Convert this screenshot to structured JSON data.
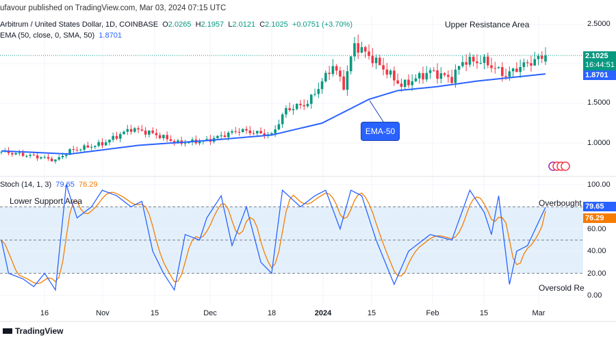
{
  "header": {
    "published": "ufavour published on TradingView.com, Mar 03, 2024 07:15 UTC"
  },
  "legend": {
    "symbol": "Arbitrum / United States Dollar, 1D, COINBASE",
    "o_label": "O",
    "o": "2.0265",
    "h_label": "H",
    "h": "2.1957",
    "l_label": "L",
    "l": "2.0121",
    "c_label": "C",
    "c": "2.1025",
    "change": "+0.0751 (+3.70%)",
    "ema_label": "EMA (50, close, 0, SMA, 50)",
    "ema_value": "1.8701"
  },
  "stoch_legend": {
    "label": "Stoch (14, 1, 3)",
    "k": "79.65",
    "d": "76.29"
  },
  "price_labels": {
    "last": "2.1025",
    "countdown": "16:44:51",
    "ema": "1.8701"
  },
  "stoch_labels": {
    "k": "79.65",
    "d": "76.29"
  },
  "annotations": {
    "upper": "Upper Resistance Area",
    "ema": "EMA-50",
    "lower": "Lower Support Area",
    "overbought": "Overbought",
    "oversold": "Oversold Re"
  },
  "footer": {
    "logo": "TradingView"
  },
  "colors": {
    "up": "#089981",
    "down": "#f23645",
    "ema": "#2962ff",
    "k": "#2962ff",
    "d": "#f57c00",
    "band": "#e3f0fb"
  },
  "chart_data": [
    {
      "type": "candlestick",
      "yaxis_ticks": [
        "2.5000",
        "1.5000",
        "1.0000"
      ],
      "ylim": [
        0.7,
        2.6
      ],
      "xaxis_ticks": [
        "16",
        "Nov",
        "15",
        "Dec",
        "18",
        "2024",
        "15",
        "Feb",
        "15",
        "Mar"
      ],
      "close": [
        [
          "2023-10-04",
          0.89
        ],
        [
          "2023-10-15",
          0.82
        ],
        [
          "2023-10-19",
          0.78
        ],
        [
          "2023-10-23",
          0.9
        ],
        [
          "2023-11-01",
          0.99
        ],
        [
          "2023-11-09",
          1.18
        ],
        [
          "2023-11-15",
          1.12
        ],
        [
          "2023-11-22",
          1.0
        ],
        [
          "2023-11-30",
          1.03
        ],
        [
          "2023-12-09",
          1.16
        ],
        [
          "2023-12-18",
          1.1
        ],
        [
          "2023-12-22",
          1.42
        ],
        [
          "2023-12-28",
          1.5
        ],
        [
          "2024-01-01",
          1.77
        ],
        [
          "2024-01-04",
          1.98
        ],
        [
          "2024-01-07",
          1.72
        ],
        [
          "2024-01-10",
          2.24
        ],
        [
          "2024-01-14",
          2.1
        ],
        [
          "2024-01-18",
          1.94
        ],
        [
          "2024-01-23",
          1.72
        ],
        [
          "2024-01-31",
          1.9
        ],
        [
          "2024-02-06",
          1.81
        ],
        [
          "2024-02-09",
          2.03
        ],
        [
          "2024-02-15",
          2.03
        ],
        [
          "2024-02-21",
          1.85
        ],
        [
          "2024-02-24",
          1.94
        ],
        [
          "2024-03-03",
          2.1025
        ]
      ],
      "ema50": [
        [
          "2023-10-04",
          0.9
        ],
        [
          "2023-10-23",
          0.86
        ],
        [
          "2023-11-11",
          0.97
        ],
        [
          "2023-11-30",
          1.03
        ],
        [
          "2023-12-18",
          1.1
        ],
        [
          "2024-01-01",
          1.25
        ],
        [
          "2024-01-14",
          1.55
        ],
        [
          "2024-01-22",
          1.66
        ],
        [
          "2024-02-02",
          1.71
        ],
        [
          "2024-02-13",
          1.78
        ],
        [
          "2024-03-03",
          1.8701
        ]
      ]
    },
    {
      "type": "line",
      "title": "Stoch (14, 1, 3)",
      "yaxis_ticks": [
        "100.00",
        "80.00",
        "60.00",
        "40.00",
        "20.00",
        "0.00"
      ],
      "ylim": [
        0,
        100
      ],
      "bands": [
        20,
        50,
        80
      ],
      "k": [
        [
          "2023-10-04",
          50
        ],
        [
          "2023-10-06",
          20
        ],
        [
          "2023-10-10",
          15
        ],
        [
          "2023-10-13",
          8
        ],
        [
          "2023-10-16",
          20
        ],
        [
          "2023-10-19",
          5
        ],
        [
          "2023-10-22",
          100
        ],
        [
          "2023-10-25",
          70
        ],
        [
          "2023-10-29",
          80
        ],
        [
          "2023-11-01",
          95
        ],
        [
          "2023-11-05",
          90
        ],
        [
          "2023-11-09",
          80
        ],
        [
          "2023-11-12",
          85
        ],
        [
          "2023-11-15",
          40
        ],
        [
          "2023-11-18",
          20
        ],
        [
          "2023-11-21",
          5
        ],
        [
          "2023-11-24",
          55
        ],
        [
          "2023-11-28",
          50
        ],
        [
          "2023-11-30",
          70
        ],
        [
          "2023-12-04",
          90
        ],
        [
          "2023-12-07",
          45
        ],
        [
          "2023-12-11",
          80
        ],
        [
          "2023-12-15",
          30
        ],
        [
          "2023-12-18",
          20
        ],
        [
          "2023-12-21",
          95
        ],
        [
          "2023-12-26",
          80
        ],
        [
          "2023-12-30",
          90
        ],
        [
          "2024-01-02",
          95
        ],
        [
          "2024-01-06",
          60
        ],
        [
          "2024-01-09",
          95
        ],
        [
          "2024-01-12",
          90
        ],
        [
          "2024-01-16",
          50
        ],
        [
          "2024-01-21",
          10
        ],
        [
          "2024-01-25",
          40
        ],
        [
          "2024-01-31",
          55
        ],
        [
          "2024-02-06",
          50
        ],
        [
          "2024-02-11",
          95
        ],
        [
          "2024-02-15",
          75
        ],
        [
          "2024-02-17",
          55
        ],
        [
          "2024-02-19",
          90
        ],
        [
          "2024-02-22",
          10
        ],
        [
          "2024-02-24",
          40
        ],
        [
          "2024-02-27",
          45
        ],
        [
          "2024-03-03",
          79.65
        ]
      ],
      "d_last": 76.29
    }
  ]
}
